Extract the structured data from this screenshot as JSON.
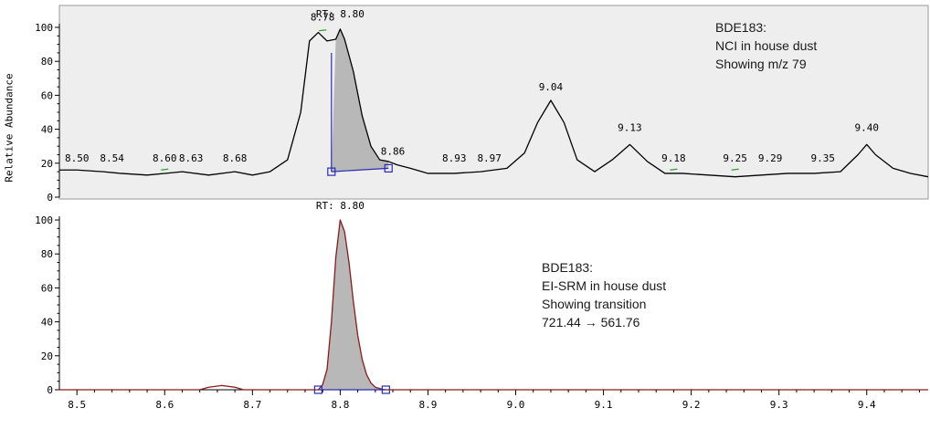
{
  "y_axis_label": "Relative Abundance",
  "colors": {
    "top_panel_bg": "#eeeeee",
    "top_trace": "#000000",
    "bottom_trace": "#8b1a1a",
    "peak_fill": "#b8b8b8",
    "integration_marker": "#2b2bb5",
    "peak_apex_tick": "#2e9e2e"
  },
  "annotations": {
    "top": [
      "BDE183:",
      "NCI in house dust",
      "Showing m/z 79"
    ],
    "bottom": [
      "BDE183:",
      "EI-SRM in house dust",
      "Showing transition",
      "721.44 → 561.76"
    ]
  },
  "chart_data": [
    {
      "type": "line",
      "xlabel": "",
      "ylabel": "Relative Abundance",
      "xlim": [
        8.48,
        9.47
      ],
      "ylim": [
        0,
        100
      ],
      "y_ticks": [
        0,
        20,
        40,
        60,
        80,
        100
      ],
      "rt_label": "RT: 8.80",
      "trace": {
        "x": [
          8.48,
          8.5,
          8.53,
          8.55,
          8.58,
          8.6,
          8.62,
          8.65,
          8.68,
          8.7,
          8.72,
          8.74,
          8.755,
          8.765,
          8.775,
          8.785,
          8.795,
          8.8,
          8.805,
          8.815,
          8.825,
          8.835,
          8.845,
          8.855,
          8.865,
          8.88,
          8.9,
          8.93,
          8.96,
          8.99,
          9.01,
          9.025,
          9.04,
          9.055,
          9.07,
          9.09,
          9.11,
          9.13,
          9.15,
          9.17,
          9.19,
          9.22,
          9.25,
          9.28,
          9.31,
          9.34,
          9.37,
          9.39,
          9.4,
          9.41,
          9.43,
          9.45,
          9.47
        ],
        "y": [
          16,
          16,
          15,
          14,
          13,
          14,
          15,
          13,
          15,
          13,
          15,
          22,
          50,
          92,
          97,
          92,
          93,
          99,
          93,
          74,
          48,
          30,
          22,
          21,
          19,
          17,
          14,
          14,
          15,
          17,
          26,
          44,
          57,
          44,
          22,
          15,
          22,
          31,
          21,
          14,
          14,
          13,
          12,
          13,
          14,
          14,
          15,
          25,
          31,
          25,
          17,
          14,
          12
        ]
      },
      "peak_labels": [
        {
          "rt": 8.5,
          "label": "8.50"
        },
        {
          "rt": 8.54,
          "label": "8.54"
        },
        {
          "rt": 8.6,
          "label": "8.60"
        },
        {
          "rt": 8.63,
          "label": "8.63"
        },
        {
          "rt": 8.68,
          "label": "8.68"
        },
        {
          "rt": 8.78,
          "label": "8.78"
        },
        {
          "rt": 8.86,
          "label": "8.86"
        },
        {
          "rt": 8.93,
          "label": "8.93"
        },
        {
          "rt": 8.97,
          "label": "8.97"
        },
        {
          "rt": 9.04,
          "label": "9.04"
        },
        {
          "rt": 9.13,
          "label": "9.13"
        },
        {
          "rt": 9.18,
          "label": "9.18"
        },
        {
          "rt": 9.25,
          "label": "9.25"
        },
        {
          "rt": 9.29,
          "label": "9.29"
        },
        {
          "rt": 9.35,
          "label": "9.35"
        },
        {
          "rt": 9.4,
          "label": "9.40"
        }
      ],
      "integration": {
        "start": 8.79,
        "end": 8.855,
        "baseline_start": 15,
        "baseline_end": 17
      }
    },
    {
      "type": "line",
      "xlabel": "",
      "ylabel": "",
      "xlim": [
        8.48,
        9.47
      ],
      "ylim": [
        0,
        100
      ],
      "y_ticks": [
        0,
        20,
        40,
        60,
        80,
        100
      ],
      "x_ticks": [
        8.5,
        8.6,
        8.7,
        8.8,
        8.9,
        9.0,
        9.1,
        9.2,
        9.3,
        9.4
      ],
      "x_tick_labels": [
        "8.5",
        "8.6",
        "8.7",
        "8.8",
        "8.9",
        "9.0",
        "9.1",
        "9.2",
        "9.3",
        "9.4"
      ],
      "rt_label": "RT: 8.80",
      "trace": {
        "x": [
          8.48,
          8.64,
          8.65,
          8.665,
          8.68,
          8.69,
          8.775,
          8.78,
          8.785,
          8.79,
          8.795,
          8.8,
          8.805,
          8.81,
          8.815,
          8.82,
          8.825,
          8.83,
          8.835,
          8.84,
          8.85,
          9.47
        ],
        "y": [
          0,
          0,
          1.5,
          2.5,
          1.5,
          0,
          0,
          3,
          12,
          40,
          78,
          100,
          93,
          75,
          52,
          32,
          18,
          9,
          4,
          1.5,
          0,
          0
        ]
      },
      "integration": {
        "start": 8.775,
        "end": 8.852
      }
    }
  ]
}
